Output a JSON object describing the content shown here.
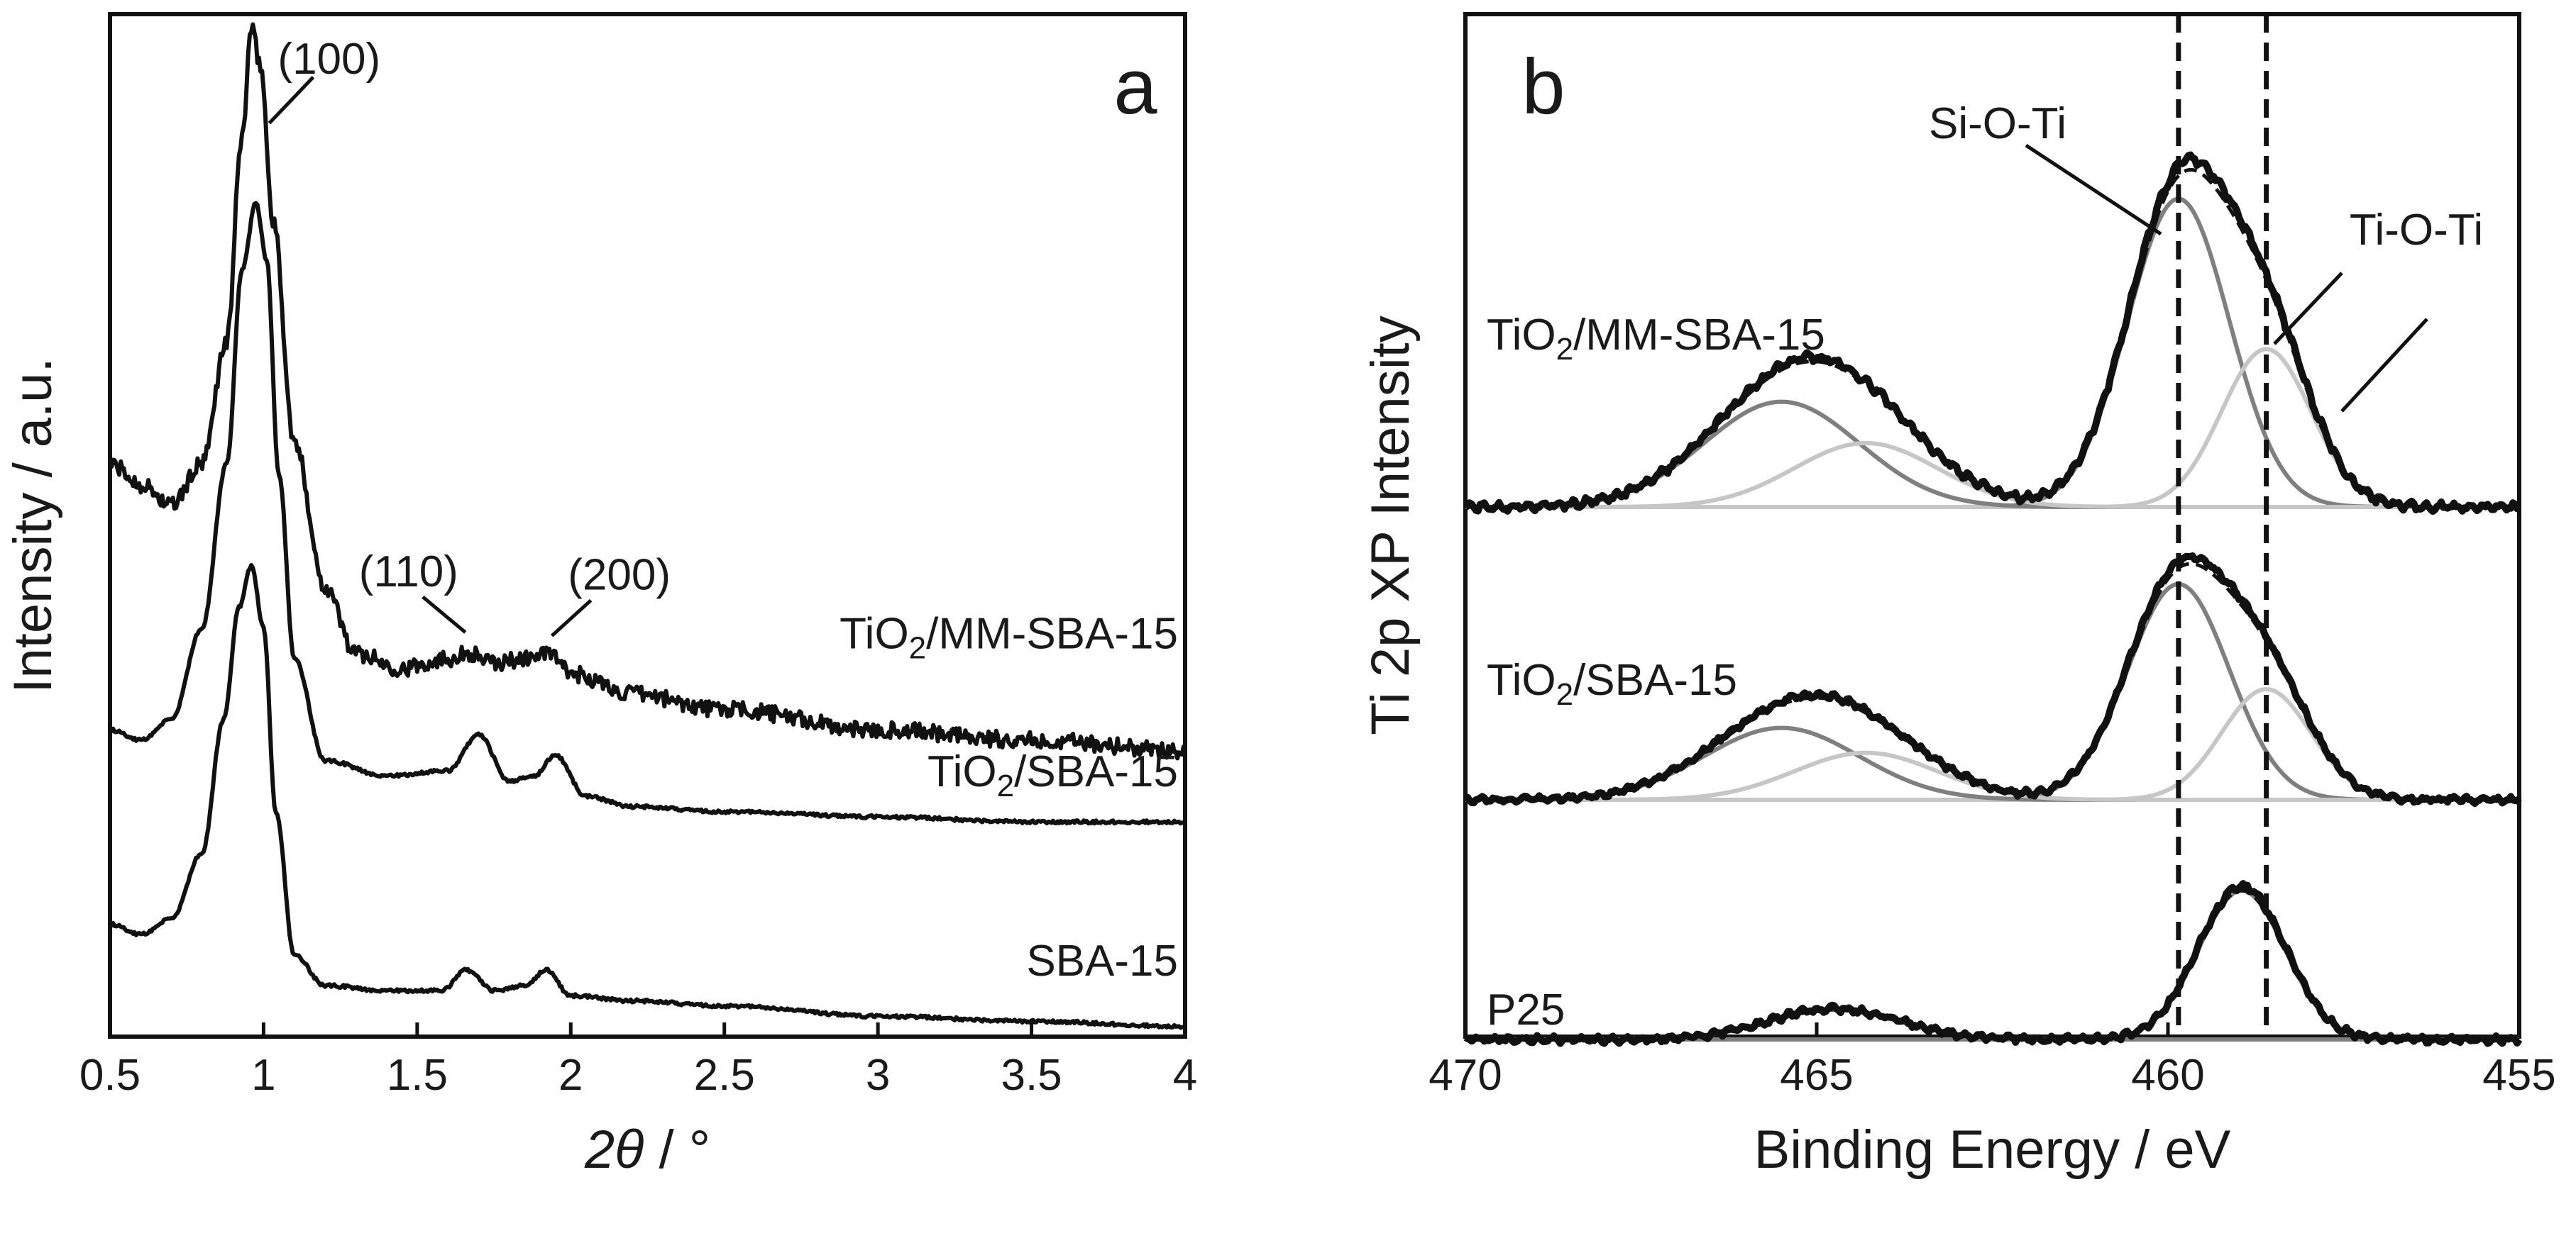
{
  "chart_data": [
    {
      "type": "line",
      "panel_label": "a",
      "xlabel_italic": "2θ",
      "xlabel_rest": " / °",
      "ylabel": "Intensity / a.u.",
      "xlim": [
        0.5,
        4
      ],
      "x_ticks": [
        0.5,
        1,
        1.5,
        2,
        2.5,
        3,
        3.5,
        4
      ],
      "x_tick_labels": [
        "0.5",
        "1",
        "1.5",
        "2",
        "2.5",
        "3",
        "3.5",
        "4"
      ],
      "y_ticks_shown": false,
      "series": [
        {
          "name": "TiO2/MM-SBA-15",
          "label_main": "TiO",
          "label_sub": "2",
          "label_rest": "/MM-SBA-15",
          "color": "#111111",
          "noisy": true,
          "x": [
            0.5,
            0.6,
            0.7,
            0.8,
            0.88,
            0.93,
            0.96,
            0.99,
            1.03,
            1.1,
            1.2,
            1.3,
            1.45,
            1.6,
            1.67,
            1.75,
            1.85,
            1.93,
            2.0,
            2.2,
            2.5,
            3.0,
            3.5,
            4.0
          ],
          "y": [
            0.56,
            0.54,
            0.52,
            0.56,
            0.68,
            0.88,
            0.985,
            0.95,
            0.8,
            0.58,
            0.44,
            0.375,
            0.36,
            0.37,
            0.375,
            0.365,
            0.37,
            0.375,
            0.355,
            0.335,
            0.32,
            0.3,
            0.29,
            0.28
          ]
        },
        {
          "name": "TiO2/SBA-15",
          "label_main": "TiO",
          "label_sub": "2",
          "label_rest": "/SBA-15",
          "color": "#111111",
          "noisy": false,
          "x": [
            0.5,
            0.6,
            0.7,
            0.8,
            0.88,
            0.93,
            0.975,
            1.01,
            1.05,
            1.1,
            1.2,
            1.4,
            1.6,
            1.7,
            1.8,
            1.88,
            1.95,
            2.05,
            2.2,
            2.5,
            3.0,
            3.5,
            4.0
          ],
          "y": [
            0.3,
            0.29,
            0.31,
            0.4,
            0.56,
            0.75,
            0.815,
            0.76,
            0.55,
            0.37,
            0.27,
            0.255,
            0.26,
            0.295,
            0.25,
            0.255,
            0.275,
            0.235,
            0.225,
            0.22,
            0.215,
            0.21,
            0.21
          ]
        },
        {
          "name": "SBA-15",
          "label_main": "SBA-15",
          "label_sub": "",
          "label_rest": "",
          "color": "#111111",
          "noisy": false,
          "x": [
            0.5,
            0.6,
            0.7,
            0.8,
            0.87,
            0.92,
            0.96,
            1.0,
            1.04,
            1.1,
            1.2,
            1.4,
            1.58,
            1.66,
            1.75,
            1.85,
            1.92,
            2.0,
            2.2,
            2.5,
            3.0,
            3.5,
            4.0
          ],
          "y": [
            0.11,
            0.1,
            0.115,
            0.18,
            0.31,
            0.42,
            0.46,
            0.4,
            0.22,
            0.08,
            0.05,
            0.045,
            0.045,
            0.065,
            0.045,
            0.05,
            0.065,
            0.04,
            0.035,
            0.03,
            0.02,
            0.015,
            0.01
          ]
        }
      ],
      "annotations": [
        {
          "text": "(100)",
          "at_x": 1.0,
          "series": "TiO2/MM-SBA-15"
        },
        {
          "text": "(110)",
          "at_x": 1.68,
          "series": "TiO2/MM-SBA-15"
        },
        {
          "text": "(200)",
          "at_x": 1.95,
          "series": "TiO2/MM-SBA-15"
        }
      ]
    },
    {
      "type": "line",
      "panel_label": "b",
      "xlabel": "Binding Energy / eV",
      "ylabel": "Ti 2p XP Intensity",
      "xlim": [
        470,
        455
      ],
      "x_ticks": [
        470,
        465,
        460,
        455
      ],
      "x_tick_labels": [
        "470",
        "465",
        "460",
        "455"
      ],
      "y_ticks_shown": false,
      "reference_lines_eV": [
        459.85,
        458.6
      ],
      "annotations": [
        {
          "text": "Si-O-Ti",
          "points_to_eV": 459.85
        },
        {
          "text": "Ti-O-Ti",
          "points_to_eV": 458.6
        }
      ],
      "samples": [
        {
          "name": "TiO2/MM-SBA-15",
          "label_main": "TiO",
          "label_sub": "2",
          "label_rest": "/MM-SBA-15",
          "components": [
            {
              "name": "Si-O-Ti 2p3/2",
              "center": 459.85,
              "height": 0.82,
              "fwhm": 1.7,
              "color": "#7f7f7f"
            },
            {
              "name": "Ti-O-Ti 2p3/2",
              "center": 458.6,
              "height": 0.42,
              "fwhm": 1.5,
              "color": "#c6c6c6"
            },
            {
              "name": "Si-O-Ti 2p1/2",
              "center": 465.5,
              "height": 0.28,
              "fwhm": 2.6,
              "color": "#7f7f7f"
            },
            {
              "name": "Ti-O-Ti 2p1/2",
              "center": 464.3,
              "height": 0.17,
              "fwhm": 2.4,
              "color": "#c6c6c6"
            }
          ]
        },
        {
          "name": "TiO2/SBA-15",
          "label_main": "TiO",
          "label_sub": "2",
          "label_rest": "/SBA-15",
          "components": [
            {
              "name": "Si-O-Ti 2p3/2",
              "center": 459.85,
              "height": 0.78,
              "fwhm": 1.7,
              "color": "#7f7f7f"
            },
            {
              "name": "Ti-O-Ti 2p3/2",
              "center": 458.6,
              "height": 0.4,
              "fwhm": 1.5,
              "color": "#c6c6c6"
            },
            {
              "name": "Si-O-Ti 2p1/2",
              "center": 465.5,
              "height": 0.26,
              "fwhm": 2.6,
              "color": "#7f7f7f"
            },
            {
              "name": "Ti-O-Ti 2p1/2",
              "center": 464.3,
              "height": 0.17,
              "fwhm": 2.4,
              "color": "#c6c6c6"
            }
          ]
        },
        {
          "name": "P25",
          "label_main": "P25",
          "label_sub": "",
          "label_rest": "",
          "components": [
            {
              "name": "Ti-O-Ti 2p3/2",
              "center": 458.95,
              "height": 0.5,
              "fwhm": 1.45,
              "color": "#7f7f7f"
            },
            {
              "name": "Ti-O-Ti 2p1/2",
              "center": 464.75,
              "height": 0.1,
              "fwhm": 2.2,
              "color": "#7f7f7f"
            }
          ]
        }
      ],
      "legend_styles": {
        "measured": "thick solid black",
        "envelope_fit": "dashed black",
        "components": "gray solid"
      }
    }
  ]
}
